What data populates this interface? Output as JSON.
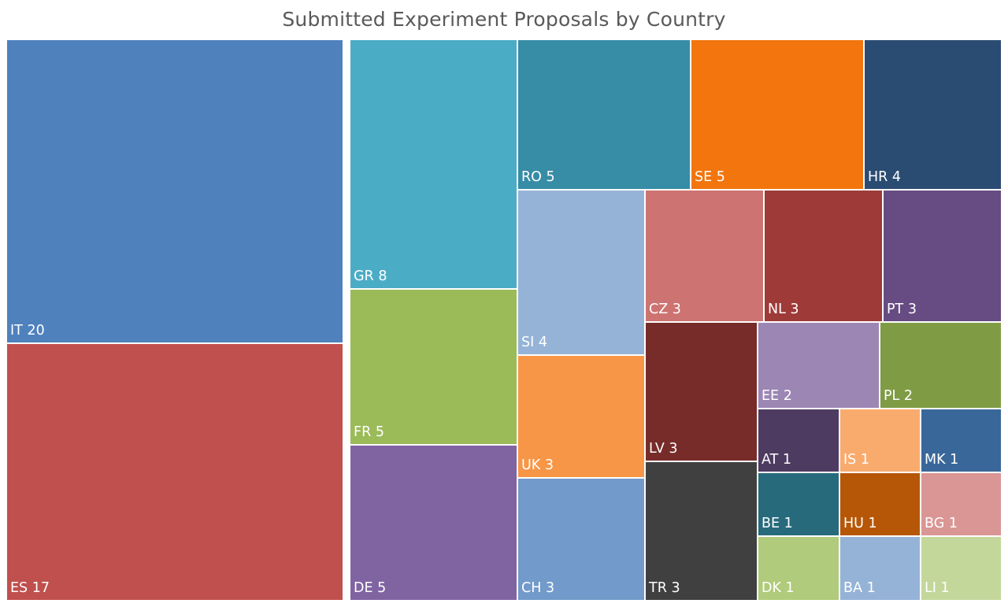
{
  "chart_data": {
    "type": "treemap",
    "title": "Submitted Experiment Proposals by Country",
    "items": [
      {
        "code": "IT",
        "value": 20,
        "color": "#4f81bd"
      },
      {
        "code": "ES",
        "value": 17,
        "color": "#c0504d"
      },
      {
        "code": "GR",
        "value": 8,
        "color": "#4bacc6"
      },
      {
        "code": "FR",
        "value": 5,
        "color": "#9bbb59"
      },
      {
        "code": "DE",
        "value": 5,
        "color": "#8064a2"
      },
      {
        "code": "RO",
        "value": 5,
        "color": "#378ca6"
      },
      {
        "code": "SE",
        "value": 5,
        "color": "#f2750d"
      },
      {
        "code": "HR",
        "value": 4,
        "color": "#2b4c72"
      },
      {
        "code": "SI",
        "value": 4,
        "color": "#95b3d7"
      },
      {
        "code": "UK",
        "value": 3,
        "color": "#f79646"
      },
      {
        "code": "CH",
        "value": 3,
        "color": "#729aca"
      },
      {
        "code": "CZ",
        "value": 3,
        "color": "#cd7371"
      },
      {
        "code": "NL",
        "value": 3,
        "color": "#9e3a38"
      },
      {
        "code": "PT",
        "value": 3,
        "color": "#664c82"
      },
      {
        "code": "LV",
        "value": 3,
        "color": "#772c2a"
      },
      {
        "code": "TR",
        "value": 3,
        "color": "#404040"
      },
      {
        "code": "EE",
        "value": 2,
        "color": "#9c86b4"
      },
      {
        "code": "PL",
        "value": 2,
        "color": "#7f9c44"
      },
      {
        "code": "AT",
        "value": 1,
        "color": "#4e3b61"
      },
      {
        "code": "IS",
        "value": 1,
        "color": "#f9ab6e"
      },
      {
        "code": "MK",
        "value": 1,
        "color": "#3a6799"
      },
      {
        "code": "BE",
        "value": 1,
        "color": "#276a7c"
      },
      {
        "code": "HU",
        "value": 1,
        "color": "#b65708"
      },
      {
        "code": "BG",
        "value": 1,
        "color": "#da9694"
      },
      {
        "code": "DK",
        "value": 1,
        "color": "#b0cb7b"
      },
      {
        "code": "BA",
        "value": 1,
        "color": "#95b3d7"
      },
      {
        "code": "LI",
        "value": 1,
        "color": "#c4d79b"
      }
    ]
  }
}
